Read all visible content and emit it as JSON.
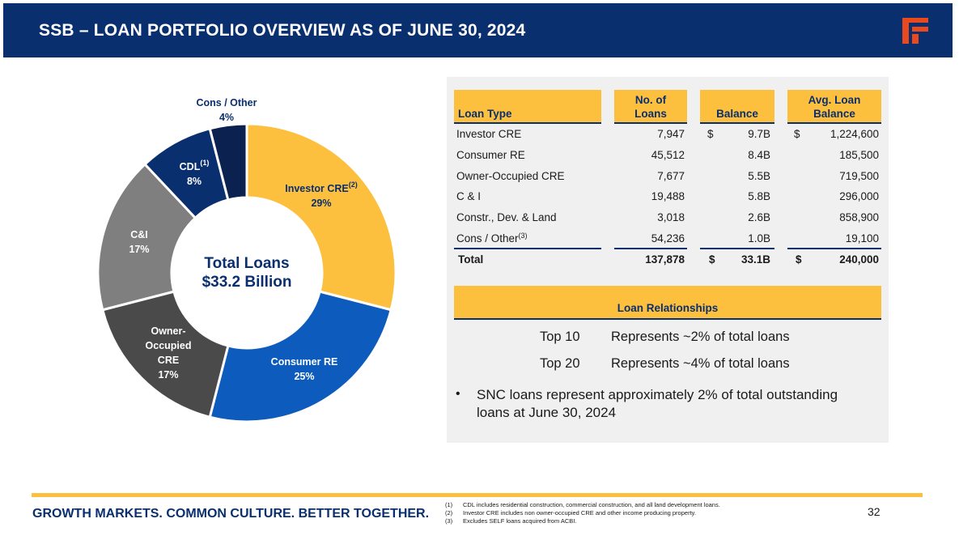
{
  "header": {
    "title": "SSB – LOAN PORTFOLIO OVERVIEW AS OF JUNE 30, 2024"
  },
  "colors": {
    "navy": "#0a2f6e",
    "gold": "#fcbf3e",
    "blue": "#0d5cbd",
    "dark_gray": "#4a4a4a",
    "mid_gray": "#7f7f7f",
    "dark_navy": "#0b2150",
    "logo_red": "#e8491d"
  },
  "chart_data": {
    "type": "pie",
    "title": "Total Loans $33.2 Billion",
    "center_label": {
      "line1": "Total Loans",
      "line2": "$33.2 Billion"
    },
    "slices": [
      {
        "name": "Investor CRE",
        "sup": "(2)",
        "value": 29,
        "pct_label": "29%",
        "color": "#fcbf3e"
      },
      {
        "name": "Consumer RE",
        "sup": "",
        "value": 25,
        "pct_label": "25%",
        "color": "#0d5cbd"
      },
      {
        "name": "Owner-Occupied CRE",
        "sup": "",
        "value": 17,
        "pct_label": "17%",
        "color": "#4a4a4a"
      },
      {
        "name": "C&I",
        "sup": "",
        "value": 17,
        "pct_label": "17%",
        "color": "#7f7f7f"
      },
      {
        "name": "CDL",
        "sup": "(1)",
        "value": 8,
        "pct_label": "8%",
        "color": "#0a2f6e"
      },
      {
        "name": "Cons / Other",
        "sup": "",
        "value": 4,
        "pct_label": "4%",
        "color": "#0b2150"
      }
    ],
    "labels": {
      "investor": {
        "name": "Investor CRE",
        "sup": "(2)",
        "pct": "29%"
      },
      "consumer": {
        "name": "Consumer RE",
        "pct": "25%"
      },
      "owner": {
        "line1": "Owner-",
        "line2": "Occupied",
        "line3": "CRE",
        "pct": "17%"
      },
      "ci": {
        "name": "C&I",
        "pct": "17%"
      },
      "cdl": {
        "name": "CDL",
        "sup": "(1)",
        "pct": "8%"
      },
      "cons": {
        "name": "Cons / Other",
        "pct": "4%"
      }
    }
  },
  "table": {
    "headers": {
      "loan_type": "Loan Type",
      "loans_1": "No. of",
      "loans_2": "Loans",
      "balance": "Balance",
      "avg_1": "Avg. Loan",
      "avg_2": "Balance"
    },
    "rows": [
      {
        "type": "Investor CRE",
        "sup": "",
        "loans": "7,947",
        "bal_sym": "$",
        "balance": "9.7B",
        "avg_sym": "$",
        "avg": "1,224,600"
      },
      {
        "type": "Consumer RE",
        "sup": "",
        "loans": "45,512",
        "bal_sym": "",
        "balance": "8.4B",
        "avg_sym": "",
        "avg": "185,500"
      },
      {
        "type": "Owner-Occupied CRE",
        "sup": "",
        "loans": "7,677",
        "bal_sym": "",
        "balance": "5.5B",
        "avg_sym": "",
        "avg": "719,500"
      },
      {
        "type": "C & I",
        "sup": "",
        "loans": "19,488",
        "bal_sym": "",
        "balance": "5.8B",
        "avg_sym": "",
        "avg": "296,000"
      },
      {
        "type": "Constr., Dev. & Land",
        "sup": "",
        "loans": "3,018",
        "bal_sym": "",
        "balance": "2.6B",
        "avg_sym": "",
        "avg": "858,900"
      },
      {
        "type": "Cons / Other",
        "sup": "(3)",
        "loans": "54,236",
        "bal_sym": "",
        "balance": "1.0B",
        "avg_sym": "",
        "avg": "19,100"
      }
    ],
    "total": {
      "type": "Total",
      "loans": "137,878",
      "bal_sym": "$",
      "balance": "33.1B",
      "avg_sym": "$",
      "avg": "240,000"
    }
  },
  "relationships": {
    "header": "Loan Relationships",
    "rows": [
      {
        "label": "Top 10",
        "text": "Represents ~2% of total loans"
      },
      {
        "label": "Top 20",
        "text": "Represents ~4% of total loans"
      }
    ]
  },
  "bullet": {
    "symbol": "•",
    "text": "SNC loans represent approximately 2% of total outstanding loans at June 30, 2024"
  },
  "footer": {
    "tagline": "GROWTH MARKETS. COMMON CULTURE. BETTER TOGETHER.",
    "footnotes": [
      {
        "num": "(1)",
        "text": "CDL includes residential construction, commercial construction, and all land development loans."
      },
      {
        "num": "(2)",
        "text": "Investor CRE includes non owner-occupied CRE and other income producing property."
      },
      {
        "num": "(3)",
        "text": "Excludes SELF loans acquired from ACBI."
      }
    ],
    "page_number": "32"
  }
}
